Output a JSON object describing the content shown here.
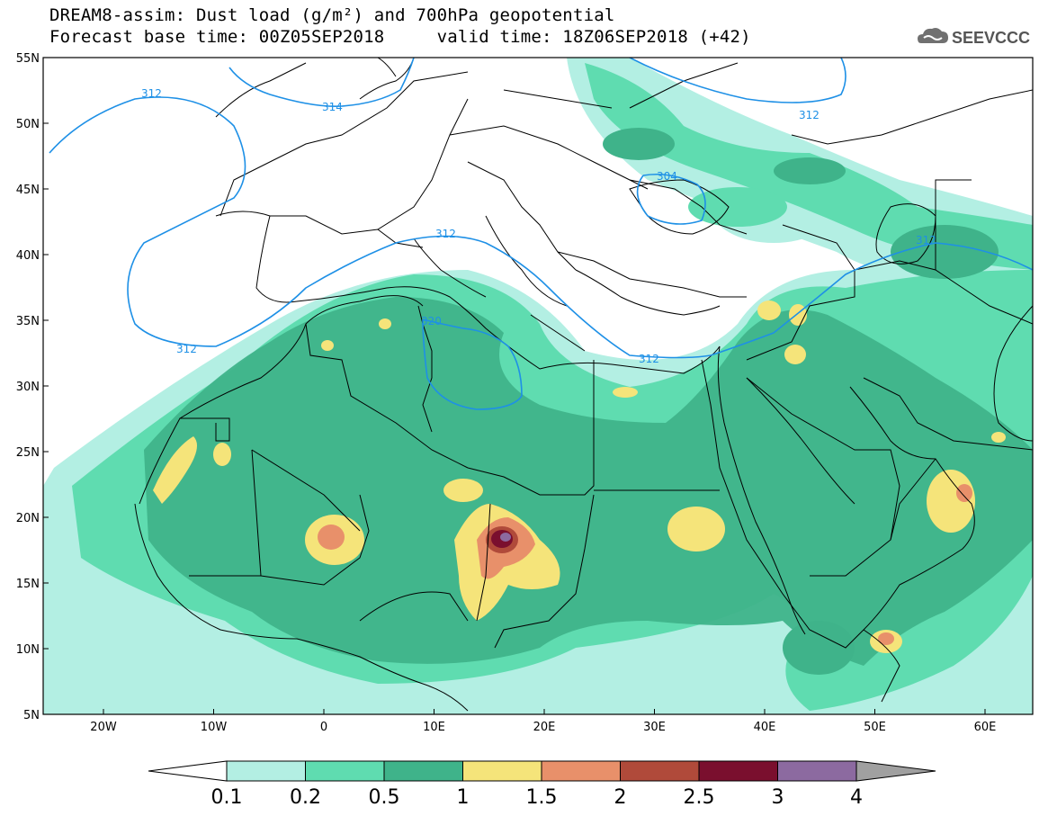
{
  "header": {
    "title_line1": "DREAM8-assim: Dust load (g/m²) and 700hPa geopotential",
    "title_line2": "Forecast base time: 00Z05SEP2018     valid time: 18Z06SEP2018 (+42)",
    "logo_text": "SEEVCCC",
    "logo_icon": "cloud-logo-icon"
  },
  "map": {
    "lat_ticks": [
      "55N",
      "50N",
      "45N",
      "40N",
      "35N",
      "30N",
      "25N",
      "20N",
      "15N",
      "10N",
      "5N"
    ],
    "lon_ticks": [
      "20W",
      "10W",
      "0",
      "10E",
      "20E",
      "30E",
      "40E",
      "50E",
      "60E"
    ],
    "contour_labels": [
      "312",
      "314",
      "312",
      "304",
      "312",
      "312",
      "320",
      "312",
      "312"
    ],
    "colors": {
      "ocean_bg": "#ffffff",
      "level_01": "#b3efe3",
      "level_02": "#5fdcb0",
      "level_05": "#3fb38a",
      "level_1": "#f5e47a",
      "level_15": "#e8906a",
      "level_2": "#b04a3a",
      "level_25": "#7a0f2e",
      "level_3": "#8c6aa0",
      "contour": "#1e90e6"
    }
  },
  "colorbar": {
    "labels": [
      "0.1",
      "0.2",
      "0.5",
      "1",
      "1.5",
      "2",
      "2.5",
      "3",
      "4"
    ],
    "colors": [
      "#b3efe3",
      "#5fdcb0",
      "#3fb38a",
      "#f5e47a",
      "#e8906a",
      "#b04a3a",
      "#7a0f2e",
      "#8c6aa0"
    ],
    "over_color": "#a0a0a0",
    "under_color": "#ffffff"
  }
}
